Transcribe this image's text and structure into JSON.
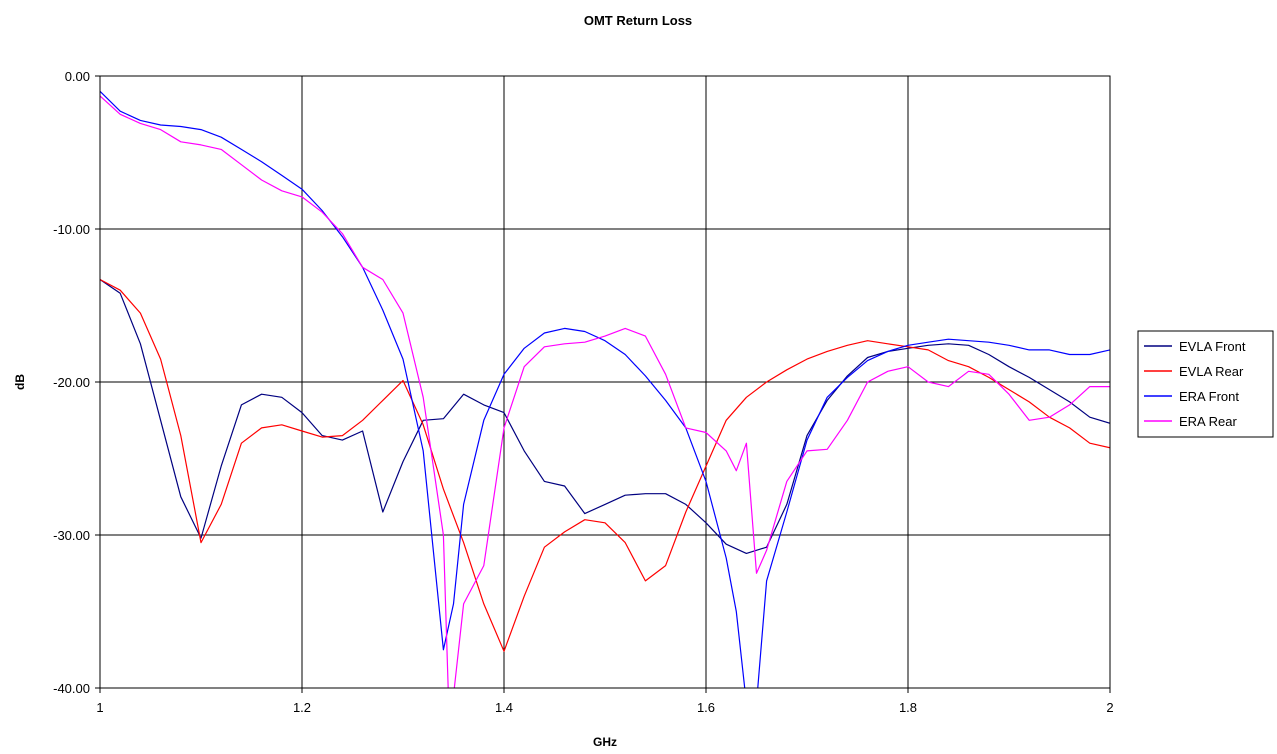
{
  "chart_data": {
    "type": "line",
    "title": "OMT Return Loss",
    "xlabel": "GHz",
    "ylabel": "dB",
    "xlim": [
      1,
      2
    ],
    "ylim": [
      -40,
      0
    ],
    "x_ticks": [
      1,
      1.2,
      1.4,
      1.6,
      1.8,
      2
    ],
    "x_tick_labels": [
      "1",
      "1.2",
      "1.4",
      "1.6",
      "1.8",
      "2"
    ],
    "y_ticks": [
      0,
      -10,
      -20,
      -30,
      -40
    ],
    "y_tick_labels": [
      "0.00",
      "-10.00",
      "-20.00",
      "-30.00",
      "-40.00"
    ],
    "grid": true,
    "legend_position": "right",
    "series": [
      {
        "name": "EVLA Front",
        "color": "#000080",
        "x": [
          1.0,
          1.02,
          1.04,
          1.06,
          1.08,
          1.1,
          1.12,
          1.14,
          1.16,
          1.18,
          1.2,
          1.22,
          1.24,
          1.26,
          1.28,
          1.3,
          1.32,
          1.34,
          1.36,
          1.38,
          1.4,
          1.42,
          1.44,
          1.46,
          1.48,
          1.5,
          1.52,
          1.54,
          1.56,
          1.58,
          1.6,
          1.62,
          1.64,
          1.66,
          1.68,
          1.7,
          1.72,
          1.74,
          1.76,
          1.78,
          1.8,
          1.82,
          1.84,
          1.86,
          1.88,
          1.9,
          1.92,
          1.94,
          1.96,
          1.98,
          2.0
        ],
        "y": [
          -13.3,
          -14.2,
          -17.5,
          -22.5,
          -27.5,
          -30.2,
          -25.5,
          -21.5,
          -20.8,
          -21.0,
          -22.0,
          -23.5,
          -23.8,
          -23.2,
          -28.5,
          -25.2,
          -22.5,
          -22.4,
          -20.8,
          -21.5,
          -22.0,
          -24.5,
          -26.5,
          -26.8,
          -28.6,
          -28.0,
          -27.4,
          -27.3,
          -27.3,
          -28.0,
          -29.2,
          -30.6,
          -31.2,
          -30.8,
          -28.0,
          -23.5,
          -21.2,
          -19.6,
          -18.4,
          -18.0,
          -17.8,
          -17.6,
          -17.5,
          -17.6,
          -18.2,
          -19.0,
          -19.7,
          -20.5,
          -21.3,
          -22.3,
          -22.7
        ]
      },
      {
        "name": "EVLA Rear",
        "color": "#ff0000",
        "x": [
          1.0,
          1.02,
          1.04,
          1.06,
          1.08,
          1.1,
          1.12,
          1.14,
          1.16,
          1.18,
          1.2,
          1.22,
          1.24,
          1.26,
          1.28,
          1.3,
          1.32,
          1.34,
          1.36,
          1.38,
          1.4,
          1.42,
          1.44,
          1.46,
          1.48,
          1.5,
          1.52,
          1.54,
          1.56,
          1.58,
          1.6,
          1.62,
          1.64,
          1.66,
          1.68,
          1.7,
          1.72,
          1.74,
          1.76,
          1.78,
          1.8,
          1.82,
          1.84,
          1.86,
          1.88,
          1.9,
          1.92,
          1.94,
          1.96,
          1.98,
          2.0
        ],
        "y": [
          -13.3,
          -14.0,
          -15.5,
          -18.5,
          -23.5,
          -30.5,
          -28.0,
          -24.0,
          -23.0,
          -22.8,
          -23.2,
          -23.6,
          -23.5,
          -22.5,
          -21.2,
          -19.9,
          -22.8,
          -27.0,
          -30.5,
          -34.5,
          -37.6,
          -34.0,
          -30.8,
          -29.8,
          -29.0,
          -29.2,
          -30.5,
          -33.0,
          -32.0,
          -28.5,
          -25.5,
          -22.5,
          -21.0,
          -20.0,
          -19.2,
          -18.5,
          -18.0,
          -17.6,
          -17.3,
          -17.5,
          -17.7,
          -17.9,
          -18.6,
          -19.0,
          -19.7,
          -20.5,
          -21.3,
          -22.3,
          -23.0,
          -24.0,
          -24.3
        ]
      },
      {
        "name": "ERA Front",
        "color": "#0000ff",
        "x": [
          1.0,
          1.02,
          1.04,
          1.06,
          1.08,
          1.1,
          1.12,
          1.14,
          1.16,
          1.18,
          1.2,
          1.22,
          1.24,
          1.26,
          1.28,
          1.3,
          1.32,
          1.34,
          1.35,
          1.36,
          1.38,
          1.4,
          1.42,
          1.44,
          1.46,
          1.48,
          1.5,
          1.52,
          1.54,
          1.56,
          1.58,
          1.6,
          1.62,
          1.63,
          1.64,
          1.65,
          1.66,
          1.68,
          1.7,
          1.72,
          1.74,
          1.76,
          1.78,
          1.8,
          1.82,
          1.84,
          1.86,
          1.88,
          1.9,
          1.92,
          1.94,
          1.96,
          1.98,
          2.0
        ],
        "y": [
          -1.0,
          -2.3,
          -2.9,
          -3.2,
          -3.3,
          -3.5,
          -4.0,
          -4.8,
          -5.6,
          -6.5,
          -7.4,
          -8.8,
          -10.5,
          -12.5,
          -15.3,
          -18.5,
          -24.5,
          -37.5,
          -34.5,
          -28.0,
          -22.5,
          -19.5,
          -17.8,
          -16.8,
          -16.5,
          -16.7,
          -17.3,
          -18.2,
          -19.6,
          -21.2,
          -23.0,
          -26.5,
          -31.5,
          -35.0,
          -41.0,
          -41.0,
          -33.0,
          -28.5,
          -23.8,
          -21.0,
          -19.7,
          -18.6,
          -18.0,
          -17.6,
          -17.4,
          -17.2,
          -17.3,
          -17.4,
          -17.6,
          -17.9,
          -17.9,
          -18.2,
          -18.2,
          -17.9
        ]
      },
      {
        "name": "ERA Rear",
        "color": "#ff00ff",
        "x": [
          1.0,
          1.02,
          1.04,
          1.06,
          1.08,
          1.1,
          1.12,
          1.14,
          1.16,
          1.18,
          1.2,
          1.22,
          1.24,
          1.26,
          1.28,
          1.3,
          1.32,
          1.34,
          1.345,
          1.35,
          1.36,
          1.38,
          1.4,
          1.42,
          1.44,
          1.46,
          1.48,
          1.5,
          1.52,
          1.54,
          1.56,
          1.58,
          1.6,
          1.62,
          1.63,
          1.64,
          1.65,
          1.66,
          1.68,
          1.7,
          1.72,
          1.74,
          1.76,
          1.78,
          1.8,
          1.82,
          1.84,
          1.86,
          1.88,
          1.9,
          1.92,
          1.94,
          1.96,
          1.98,
          2.0
        ],
        "y": [
          -1.3,
          -2.5,
          -3.1,
          -3.5,
          -4.3,
          -4.5,
          -4.8,
          -5.8,
          -6.8,
          -7.5,
          -7.9,
          -8.9,
          -10.3,
          -12.5,
          -13.3,
          -15.5,
          -21.0,
          -30.0,
          -40.5,
          -40.5,
          -34.5,
          -32.0,
          -23.0,
          -19.0,
          -17.7,
          -17.5,
          -17.4,
          -17.0,
          -16.5,
          -17.0,
          -19.5,
          -23.0,
          -23.3,
          -24.5,
          -25.8,
          -24.0,
          -32.5,
          -31.0,
          -26.5,
          -24.5,
          -24.4,
          -22.5,
          -20.0,
          -19.3,
          -19.0,
          -20.0,
          -20.3,
          -19.3,
          -19.5,
          -20.8,
          -22.5,
          -22.3,
          -21.5,
          -20.3,
          -20.3
        ]
      }
    ]
  }
}
